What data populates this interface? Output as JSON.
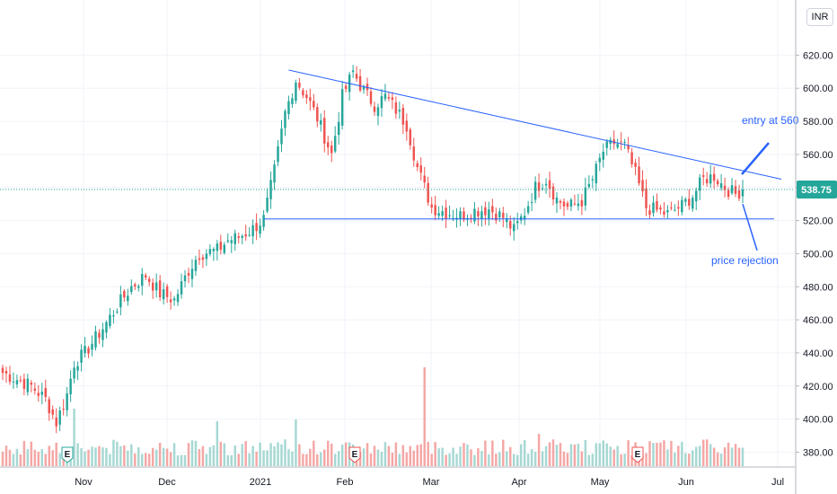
{
  "currency_label": "INR",
  "colors": {
    "up": "#26a69a",
    "down": "#ef5350",
    "vol_up": "#a6d8d3",
    "vol_down": "#f4a7a5",
    "line": "#2962ff",
    "grid": "#f0f3fa",
    "text": "#131722"
  },
  "chart_data": {
    "type": "candlestick",
    "x_ticks": [
      "Nov",
      "Dec",
      "2021",
      "Feb",
      "Mar",
      "Apr",
      "May",
      "Jun",
      "Jul"
    ],
    "y_ticks": [
      "380.00",
      "400.00",
      "420.00",
      "440.00",
      "460.00",
      "480.00",
      "500.00",
      "520.00",
      "540.00",
      "560.00",
      "580.00",
      "600.00",
      "620.00"
    ],
    "ylim": [
      371,
      649
    ],
    "last_price": "538.75",
    "earnings_markers": [
      "E",
      "E",
      "E"
    ],
    "annotations": [
      "entry at 560",
      "price rejection"
    ],
    "support_level": 521,
    "trendline": {
      "start": [
        "mid-Jan",
        611
      ],
      "end": [
        "late-Jun",
        545
      ]
    },
    "price_path": [
      [
        0,
        428
      ],
      [
        8,
        420
      ],
      [
        12,
        412
      ],
      [
        15,
        398
      ],
      [
        18,
        415
      ],
      [
        20,
        434
      ],
      [
        23,
        440
      ],
      [
        28,
        455
      ],
      [
        32,
        468
      ],
      [
        36,
        480
      ],
      [
        40,
        487
      ],
      [
        44,
        476
      ],
      [
        48,
        472
      ],
      [
        52,
        490
      ],
      [
        55,
        500
      ],
      [
        60,
        502
      ],
      [
        63,
        508
      ],
      [
        66,
        510
      ],
      [
        70,
        515
      ],
      [
        73,
        521
      ],
      [
        76,
        550
      ],
      [
        79,
        585
      ],
      [
        82,
        605
      ],
      [
        85,
        595
      ],
      [
        88,
        582
      ],
      [
        92,
        560
      ],
      [
        95,
        595
      ],
      [
        98,
        610
      ],
      [
        101,
        598
      ],
      [
        104,
        590
      ],
      [
        107,
        595
      ],
      [
        110,
        587
      ],
      [
        113,
        578
      ],
      [
        116,
        552
      ],
      [
        120,
        528
      ],
      [
        124,
        525
      ],
      [
        128,
        523
      ],
      [
        132,
        526
      ],
      [
        136,
        527
      ],
      [
        140,
        522
      ],
      [
        143,
        514
      ],
      [
        146,
        525
      ],
      [
        149,
        540
      ],
      [
        152,
        545
      ],
      [
        155,
        533
      ],
      [
        158,
        528
      ],
      [
        162,
        532
      ],
      [
        165,
        545
      ],
      [
        168,
        562
      ],
      [
        171,
        567
      ],
      [
        174,
        565
      ],
      [
        177,
        548
      ],
      [
        180,
        528
      ],
      [
        183,
        526
      ],
      [
        186,
        524
      ],
      [
        190,
        529
      ],
      [
        193,
        535
      ],
      [
        196,
        545
      ],
      [
        199,
        547
      ],
      [
        202,
        540
      ],
      [
        205,
        536
      ],
      [
        207,
        539
      ]
    ],
    "volume_spikes": [
      [
        20,
        3.2
      ],
      [
        60,
        2.5
      ],
      [
        82,
        2.6
      ],
      [
        118,
        5.5
      ],
      [
        150,
        1.8
      ]
    ]
  }
}
